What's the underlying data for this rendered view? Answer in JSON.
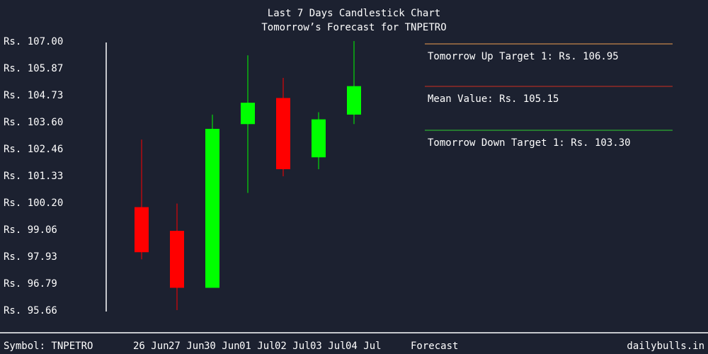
{
  "chart_data": {
    "type": "candlestick",
    "title": "Last 7 Days Candlestick Chart",
    "subtitle": "Tomorrow’s Forecast for TNPETRO",
    "ylim": [
      95.66,
      107.0
    ],
    "y_ticks": [
      "Rs. 107.00",
      "Rs. 105.87",
      "Rs. 104.73",
      "Rs. 103.60",
      "Rs. 102.46",
      "Rs. 101.33",
      "Rs. 100.20",
      "Rs. 99.06",
      "Rs. 97.93",
      "Rs. 96.79",
      "Rs. 95.66"
    ],
    "candles": [
      {
        "date": "26 Jun",
        "open": 100.0,
        "close": 98.1,
        "high": 102.85,
        "low": 97.8,
        "direction": "down"
      },
      {
        "date": "27 Jun",
        "open": 99.0,
        "close": 96.6,
        "high": 100.15,
        "low": 95.66,
        "direction": "down"
      },
      {
        "date": "30 Jun",
        "open": 96.6,
        "close": 103.3,
        "high": 103.9,
        "low": 96.6,
        "direction": "up"
      },
      {
        "date": "01 Jul",
        "open": 103.5,
        "close": 104.4,
        "high": 106.4,
        "low": 100.6,
        "direction": "up"
      },
      {
        "date": "02 Jul",
        "open": 104.6,
        "close": 101.6,
        "high": 105.45,
        "low": 101.3,
        "direction": "down"
      },
      {
        "date": "03 Jul",
        "open": 102.1,
        "close": 103.7,
        "high": 104.0,
        "low": 101.6,
        "direction": "up"
      },
      {
        "date": "04 Jul",
        "open": 103.9,
        "close": 105.1,
        "high": 107.0,
        "low": 103.5,
        "direction": "up"
      }
    ],
    "forecast_label": "Forecast",
    "forecast": [
      {
        "label": "Tomorrow Up Target 1: Rs. 106.95",
        "value": 106.95,
        "color": "#f0a050"
      },
      {
        "label": "Mean Value: Rs. 105.15",
        "value": 105.15,
        "color": "#d03020"
      },
      {
        "label": "Tomorrow Down Target 1: Rs. 103.30",
        "value": 103.3,
        "color": "#30d030"
      }
    ],
    "colors": {
      "up": "#00ff00",
      "down": "#ff0000",
      "background": "#1c2130"
    }
  },
  "footer": {
    "symbol": "Symbol: TNPETRO",
    "brand": "dailybulls.in"
  }
}
